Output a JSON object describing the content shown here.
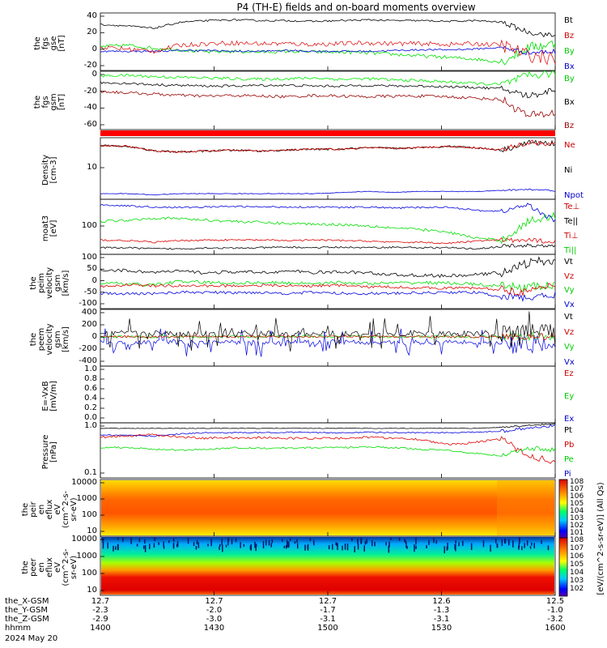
{
  "title": "P4 (TH-E) fields and on-board moments overview",
  "date": "2024 May 20",
  "xaxis": {
    "rows": [
      {
        "label": "the_X-GSM",
        "values": [
          "12.7",
          "12.7",
          "12.7",
          "12.6",
          "12.5"
        ]
      },
      {
        "label": "the_Y-GSM",
        "values": [
          "-2.3",
          "-2.0",
          "-1.7",
          "-1.3",
          "-1.0"
        ]
      },
      {
        "label": "the_Z-GSM",
        "values": [
          "-2.9",
          "-3.0",
          "-3.1",
          "-3.1",
          "-3.2"
        ]
      },
      {
        "label": "hhmm",
        "values": [
          "1400",
          "1430",
          "1500",
          "1530",
          "1600"
        ]
      }
    ]
  },
  "panels": [
    {
      "ylabel": [
        "the",
        "fgs",
        "gse",
        "[nT]"
      ],
      "ticks": [
        "40",
        "20",
        "0",
        "-20"
      ],
      "legend": [
        {
          "t": "Bt",
          "c": "#000000"
        },
        {
          "t": "Bz",
          "c": "#cc0000"
        },
        {
          "t": "By",
          "c": "#00cc00"
        },
        {
          "t": "Bx",
          "c": "#0000cc"
        }
      ]
    },
    {
      "ylabel": [
        "the",
        "fgs",
        "gsm",
        "[nT]"
      ],
      "ticks": [
        "0",
        "-20",
        "-40",
        "-60"
      ],
      "legend": [
        {
          "t": "By",
          "c": "#00cc00"
        },
        {
          "t": "Bx",
          "c": "#000000"
        },
        {
          "t": "Bz",
          "c": "#990000"
        }
      ]
    },
    {
      "ylabel": [
        "Density",
        "[cm-3]"
      ],
      "ticks": [
        "10"
      ],
      "legend": [
        {
          "t": "Ne",
          "c": "#cc0000"
        },
        {
          "t": "Ni",
          "c": "#000000"
        },
        {
          "t": "Npot",
          "c": "#0000cc"
        }
      ]
    },
    {
      "ylabel": [
        "moat3",
        "[eV]"
      ],
      "ticks": [
        "100"
      ],
      "legend": [
        {
          "t": "Te⊥",
          "c": "#cc0000"
        },
        {
          "t": "Te||",
          "c": "#000000"
        },
        {
          "t": "Ti⊥",
          "c": "#cc0000"
        },
        {
          "t": "Ti||",
          "c": "#00cc00"
        }
      ]
    },
    {
      "ylabel": [
        "the",
        "peim",
        "velocity",
        "gsm",
        "[km/s]"
      ],
      "ticks": [
        "100",
        "50",
        "0",
        "-50",
        "-100"
      ],
      "legend": [
        {
          "t": "Vt",
          "c": "#000000"
        },
        {
          "t": "Vz",
          "c": "#cc0000"
        },
        {
          "t": "Vy",
          "c": "#00cc00"
        },
        {
          "t": "Vx",
          "c": "#0000cc"
        }
      ]
    },
    {
      "ylabel": [
        "the",
        "peem",
        "velocity",
        "gsm",
        "[km/s]"
      ],
      "ticks": [
        "400",
        "200",
        "0",
        "-200",
        "-400"
      ],
      "legend": [
        {
          "t": "Vt",
          "c": "#000000"
        },
        {
          "t": "Vz",
          "c": "#cc0000"
        },
        {
          "t": "Vy",
          "c": "#00cc00"
        },
        {
          "t": "Vx",
          "c": "#0000cc"
        }
      ]
    },
    {
      "ylabel": [
        "E=-VxB",
        "[mV/m]"
      ],
      "ticks": [
        "1.0",
        "0.8",
        "0.6",
        "0.4",
        "0.2",
        "0.0"
      ],
      "legend": [
        {
          "t": "Ez",
          "c": "#cc0000"
        },
        {
          "t": "Ey",
          "c": "#00cc00"
        },
        {
          "t": "Ex",
          "c": "#0000cc"
        }
      ]
    },
    {
      "ylabel": [
        "Pressure",
        "[nPa]"
      ],
      "ticks": [
        "1.0",
        "0.1"
      ],
      "legend": [
        {
          "t": "Pt",
          "c": "#000000"
        },
        {
          "t": "Pb",
          "c": "#cc0000"
        },
        {
          "t": "Pe",
          "c": "#00cc00"
        },
        {
          "t": "Pi",
          "c": "#0000cc"
        }
      ]
    },
    {
      "ylabel": [
        "the",
        "peir",
        "en",
        "eflux",
        "eV",
        "(cm^2-s-",
        "sr-eV)"
      ],
      "ticks": [
        "10000",
        "1000",
        "100",
        "10"
      ],
      "legend": []
    },
    {
      "ylabel": [
        "the",
        "peer",
        "en",
        "eflux",
        "eV",
        "(cm^2-s-",
        "sr-eV)"
      ],
      "ticks": [
        "10000",
        "1000",
        "100",
        "10"
      ],
      "legend": []
    }
  ],
  "colorbar_label": "[eV/(cm^2-s-sr-eV)] (All Qs)",
  "colorbar_ticks_top": [
    "10^8",
    "10^7",
    "10^6",
    "10^5",
    "10^4",
    "10^3",
    "10^2",
    "10^1"
  ],
  "colorbar_ticks_bottom": [
    "10^8",
    "10^7",
    "10^6",
    "10^5",
    "10^4",
    "10^3",
    "10^2"
  ],
  "chart_data": {
    "type": "line",
    "title": "P4 (TH-E) fields and on-board moments overview",
    "x_range": [
      "1400",
      "1600"
    ],
    "series": [
      {
        "name": "Bt",
        "panel": 0,
        "values": [
          35,
          33,
          30,
          38,
          40,
          41,
          40,
          40,
          39,
          40,
          41,
          40,
          40,
          39,
          40,
          38,
          25,
          20
        ]
      },
      {
        "name": "By",
        "panel": 0,
        "values": [
          6,
          8,
          4,
          2,
          -1,
          0,
          -1,
          0,
          -1,
          -1,
          -2,
          -4,
          -6,
          -8,
          -10,
          -14,
          5,
          10
        ]
      },
      {
        "name": "Bx",
        "panel": 0,
        "values": [
          0,
          0,
          0,
          1,
          1,
          0,
          0,
          1,
          0,
          0,
          0,
          1,
          2,
          2,
          3,
          5,
          -2,
          0
        ]
      },
      {
        "name": "Bz",
        "panel": 1,
        "values": [
          -18,
          -20,
          -22,
          -24,
          -25,
          -24,
          -25,
          -26,
          -24,
          -25,
          -26,
          -25,
          -25,
          -26,
          -28,
          -30,
          -55,
          -50
        ]
      },
      {
        "name": "Ne",
        "panel": 2,
        "values": [
          25,
          24,
          18,
          17,
          18,
          19,
          18,
          19,
          20,
          20,
          22,
          21,
          22,
          24,
          22,
          19,
          30,
          28
        ]
      },
      {
        "name": "Npot",
        "panel": 2,
        "values": [
          1.4,
          1.4,
          1.3,
          1.4,
          1.4,
          1.4,
          1.4,
          1.4,
          1.4,
          1.5,
          1.6,
          1.5,
          1.6,
          1.6,
          1.6,
          1.7,
          1.8,
          1.7
        ]
      },
      {
        "name": "Vt",
        "panel": 4,
        "values": [
          50,
          48,
          40,
          45,
          38,
          42,
          40,
          45,
          40,
          42,
          38,
          30,
          28,
          25,
          30,
          40,
          80,
          90
        ]
      },
      {
        "name": "Pt",
        "panel": 7,
        "values": [
          0.9,
          0.9,
          0.9,
          0.9,
          0.9,
          0.9,
          0.9,
          0.9,
          0.9,
          0.9,
          0.9,
          0.9,
          0.9,
          0.9,
          0.9,
          0.95,
          1.0,
          1.0
        ]
      }
    ]
  }
}
